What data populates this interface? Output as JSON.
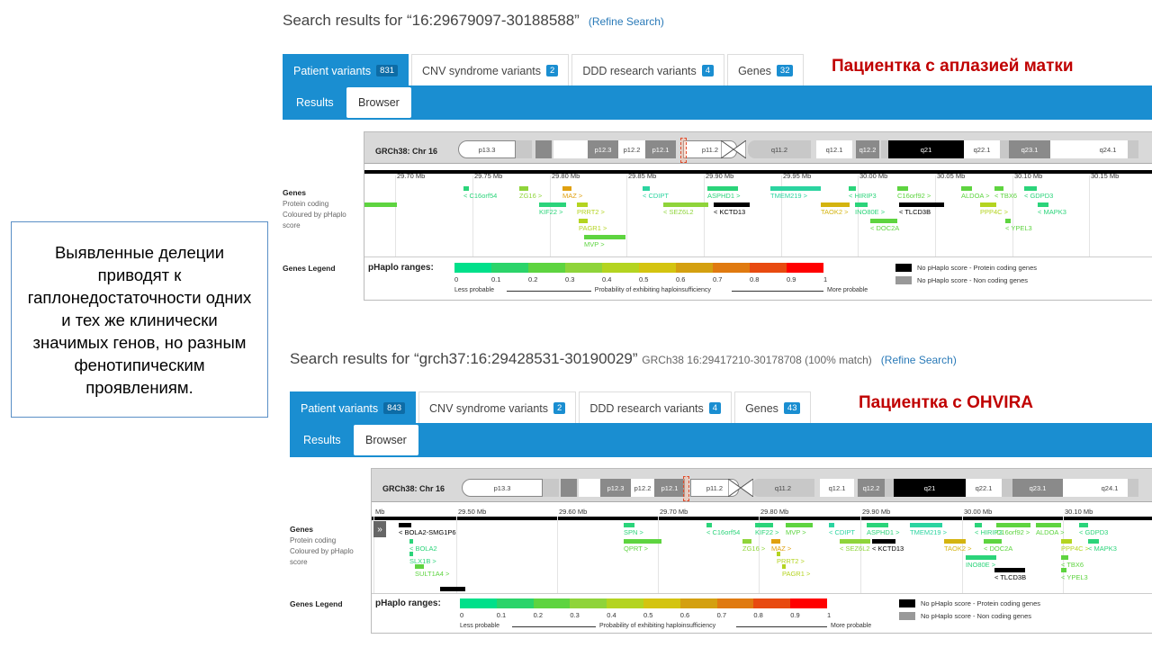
{
  "callout": {
    "text": "Выявленные делеции приводят к гаплонедостаточности одних и тех же клинически значимых генов, но разным фенотипическим проявлениям."
  },
  "panel1": {
    "search_prefix": "Search results for ",
    "search_query": "“16:29679097-30188588”",
    "refine_label": "(Refine Search)",
    "patient_label": "Пациентка с аплазией матки",
    "tabs": [
      {
        "label": "Patient variants",
        "count": "831"
      },
      {
        "label": "CNV syndrome variants",
        "count": "2"
      },
      {
        "label": "DDD research variants",
        "count": "4"
      },
      {
        "label": "Genes",
        "count": "32"
      }
    ],
    "subtabs": {
      "results": "Results",
      "browser": "Browser"
    },
    "chr_label": "GRCh38: Chr 16",
    "bands": [
      "p13.3",
      "p12.3",
      "p12.2",
      "p12.1",
      "p11.2",
      "q11.2",
      "q12.1",
      "q12.2",
      "q21",
      "q22.1",
      "q23.1",
      "q24.1"
    ],
    "ticks": [
      "29.70 Mb",
      "29.75 Mb",
      "29.80 Mb",
      "29.85 Mb",
      "29.90 Mb",
      "29.95 Mb",
      "30.00 Mb",
      "30.05 Mb",
      "30.10 Mb",
      "30.15 Mb"
    ],
    "genes": [
      {
        "label": "< C16orf54",
        "color": "#2bd47a"
      },
      {
        "label": "ZG16 >",
        "color": "#8fd43a"
      },
      {
        "label": "MAZ >",
        "color": "#e0a010"
      },
      {
        "label": "< CDIPT",
        "color": "#2bd4a0"
      },
      {
        "label": "ASPHD1 >",
        "color": "#2bd47a"
      },
      {
        "label": "TMEM219 >",
        "color": "#2bd4a0"
      },
      {
        "label": "< HIRIP3",
        "color": "#2bd47a"
      },
      {
        "label": "C16orf92 >",
        "color": "#5ed440"
      },
      {
        "label": "ALDOA >",
        "color": "#5ed440"
      },
      {
        "label": "< TBX6",
        "color": "#5ed440"
      },
      {
        "label": "< GDPD3",
        "color": "#2bd47a"
      },
      {
        "label": "KIF22 >",
        "color": "#2bd47a"
      },
      {
        "label": "PRRT2 >",
        "color": "#b4d420"
      },
      {
        "label": "< SEZ6L2",
        "color": "#8fd43a"
      },
      {
        "label": "< KCTD13",
        "color": "#000000"
      },
      {
        "label": "TAOK2 >",
        "color": "#d4b410"
      },
      {
        "label": "INO80E >",
        "color": "#2bd47a"
      },
      {
        "label": "< TLCD3B",
        "color": "#000000"
      },
      {
        "label": "PPP4C >",
        "color": "#b4d420"
      },
      {
        "label": "< MAPK3",
        "color": "#2bd47a"
      },
      {
        "label": "PAGR1 >",
        "color": "#b4d420"
      },
      {
        "label": "< DOC2A",
        "color": "#5ed440"
      },
      {
        "label": "< YPEL3",
        "color": "#5ed440"
      },
      {
        "label": "MVP >",
        "color": "#5ed440"
      }
    ]
  },
  "panel2": {
    "search_prefix": "Search results for ",
    "search_query": "“grch37:16:29428531-30190029”",
    "search_sub": "GRCh38 16:29417210-30178708 (100% match)",
    "refine_label": "(Refine Search)",
    "patient_label": "Пациентка с OHVIRA",
    "tabs": [
      {
        "label": "Patient variants",
        "count": "843"
      },
      {
        "label": "CNV syndrome variants",
        "count": "2"
      },
      {
        "label": "DDD research variants",
        "count": "4"
      },
      {
        "label": "Genes",
        "count": "43"
      }
    ],
    "subtabs": {
      "results": "Results",
      "browser": "Browser"
    },
    "chr_label": "GRCh38: Chr 16",
    "bands": [
      "p13.3",
      "p12.3",
      "p12.2",
      "p12.1",
      "p11.2",
      "q11.2",
      "q12.1",
      "q12.2",
      "q21",
      "q22.1",
      "q23.1",
      "q24.1"
    ],
    "ticks": [
      "Mb",
      "29.50 Mb",
      "29.60 Mb",
      "29.70 Mb",
      "29.80 Mb",
      "29.90 Mb",
      "30.00 Mb",
      "30.10 Mb"
    ],
    "genes": [
      {
        "label": "< BOLA2-SMG1P6",
        "color": "#000000"
      },
      {
        "label": "< BOLA2",
        "color": "#2bd47a"
      },
      {
        "label": "SLX1B >",
        "color": "#2bd47a"
      },
      {
        "label": "SULT1A4 >",
        "color": "#5ed440"
      },
      {
        "label": "SPN >",
        "color": "#2bd47a"
      },
      {
        "label": "QPRT >",
        "color": "#5ed440"
      },
      {
        "label": "< C16orf54",
        "color": "#2bd47a"
      },
      {
        "label": "KIF22 >",
        "color": "#2bd47a"
      },
      {
        "label": "ZG16 >",
        "color": "#8fd43a"
      },
      {
        "label": "MVP >",
        "color": "#5ed440"
      },
      {
        "label": "MAZ >",
        "color": "#e0a010"
      },
      {
        "label": "PRRT2 >",
        "color": "#b4d420"
      },
      {
        "label": "PAGR1 >",
        "color": "#b4d420"
      },
      {
        "label": "< CDIPT",
        "color": "#2bd4a0"
      },
      {
        "label": "< SEZ6L2",
        "color": "#8fd43a"
      },
      {
        "label": "ASPHD1 >",
        "color": "#2bd47a"
      },
      {
        "label": "< KCTD13",
        "color": "#000000"
      },
      {
        "label": "TMEM219 >",
        "color": "#2bd4a0"
      },
      {
        "label": "TAOK2 >",
        "color": "#d4b410"
      },
      {
        "label": "< HIRIP3",
        "color": "#2bd47a"
      },
      {
        "label": "< DOC2A",
        "color": "#5ed440"
      },
      {
        "label": "INO80E >",
        "color": "#2bd47a"
      },
      {
        "label": "C16orf92 >",
        "color": "#5ed440"
      },
      {
        "label": "< TLCD3B",
        "color": "#000000"
      },
      {
        "label": "ALDOA >",
        "color": "#5ed440"
      },
      {
        "label": "PPP4C >",
        "color": "#b4d420"
      },
      {
        "label": "< TBX6",
        "color": "#5ed440"
      },
      {
        "label": "< YPEL3",
        "color": "#5ed440"
      },
      {
        "label": "< GDPD3",
        "color": "#2bd47a"
      },
      {
        "label": "< MAPK3",
        "color": "#2bd47a"
      }
    ]
  },
  "sidebar_labels": {
    "genes": "Genes",
    "protein_coding": "Protein coding",
    "coloured_by": "Coloured by pHaplo",
    "score": "score",
    "genes_legend": "Genes Legend"
  },
  "legend": {
    "title": "pHaplo ranges:",
    "values": [
      "0",
      "0.1",
      "0.2",
      "0.3",
      "0.4",
      "0.5",
      "0.6",
      "0.7",
      "0.8",
      "0.9",
      "1"
    ],
    "colors": [
      "#00e08a",
      "#2bd46a",
      "#5ed440",
      "#8fd43a",
      "#b4d420",
      "#d4c410",
      "#d4a010",
      "#e07a10",
      "#e84a10",
      "#ff0000"
    ],
    "less_probable": "Less probable",
    "middle_text": "Probability of exhibiting haploinsufficiency",
    "more_probable": "More probable",
    "key_protein": "No pHaplo score - Protein coding genes",
    "key_noncoding": "No pHaplo score - Non coding genes",
    "key_protein_color": "#000000",
    "key_noncoding_color": "#999999"
  },
  "expand_icon": "double-chevron-right"
}
